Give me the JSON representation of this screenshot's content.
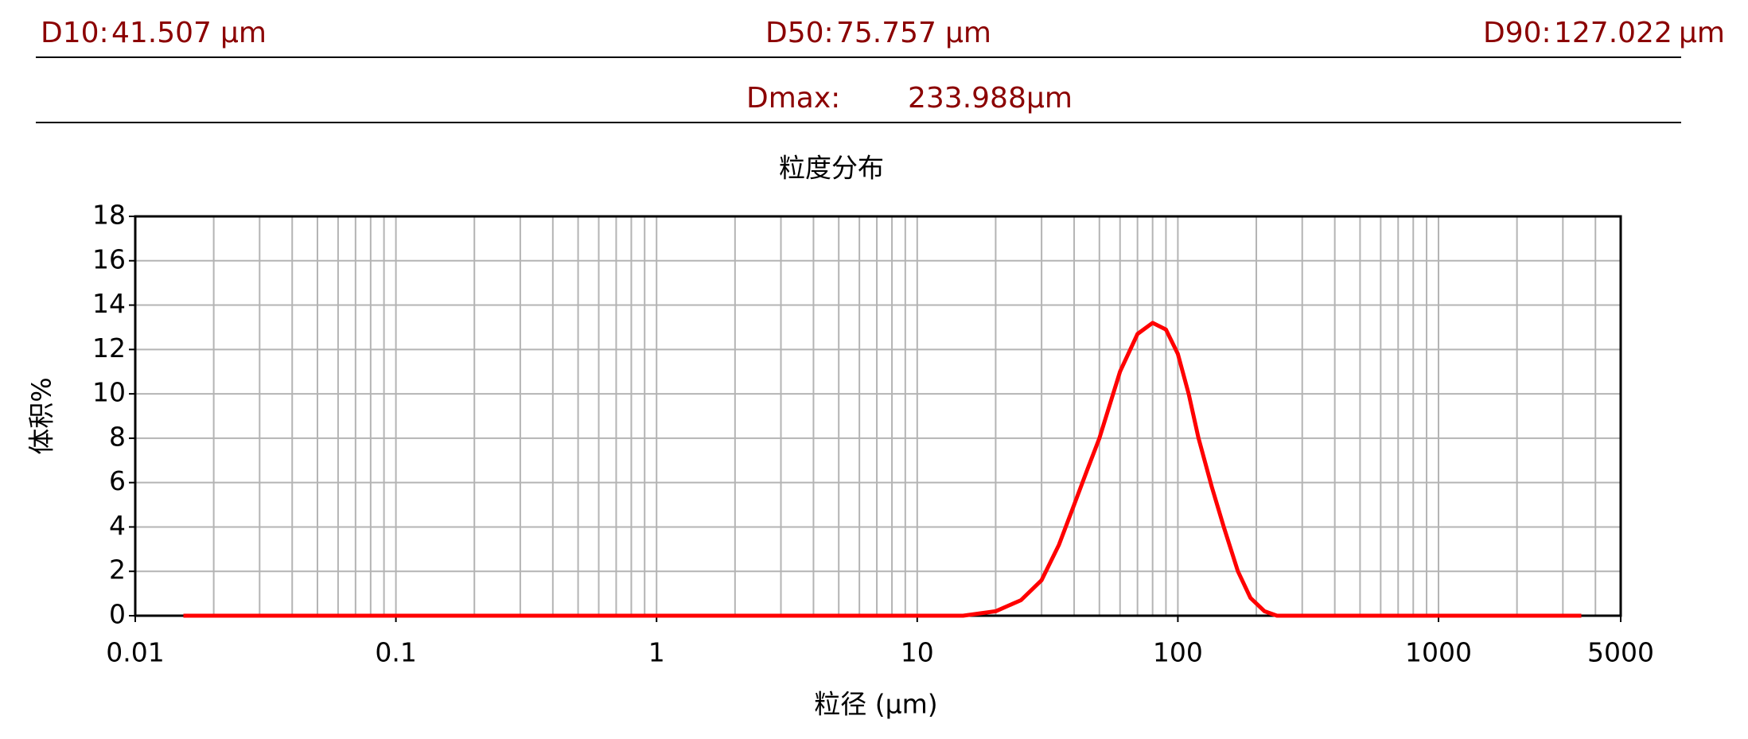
{
  "header": {
    "stats": [
      {
        "label": "D10:",
        "value": 41.507,
        "unit": "μm"
      },
      {
        "label": "D50:",
        "value": 75.757,
        "unit": "μm"
      },
      {
        "label": "D90:",
        "value": 127.022,
        "unit": "μm"
      },
      {
        "label": "Dmax:",
        "value": 233.988,
        "unit": "μm"
      }
    ]
  },
  "chart_data": {
    "type": "line",
    "title": "粒度分布",
    "x_label": "粒径 (μm)",
    "y_label": "体积%",
    "log_x": true,
    "grid": true,
    "color": "#ff0000",
    "x": [
      0.0153,
      15,
      20,
      25,
      30,
      35,
      40,
      45,
      50,
      60,
      70,
      80,
      90,
      100,
      110,
      120,
      135,
      150,
      170,
      190,
      215,
      240,
      3530
    ],
    "values": [
      0,
      0,
      0.2,
      0.7,
      1.6,
      3.2,
      5.0,
      6.6,
      8.0,
      11.0,
      12.7,
      13.2,
      12.9,
      11.8,
      10.0,
      8.0,
      5.8,
      4.0,
      2.0,
      0.8,
      0.2,
      0,
      0
    ],
    "xlim": [
      0.01,
      5000
    ],
    "xticks": [
      0.01,
      0.1,
      1,
      10,
      100,
      1000,
      5000
    ],
    "ylim": [
      0,
      18
    ],
    "yticks": [
      0,
      2,
      4,
      6,
      8,
      10,
      12,
      14,
      16,
      18
    ]
  }
}
